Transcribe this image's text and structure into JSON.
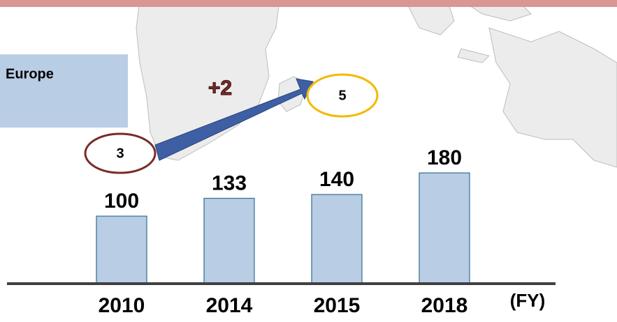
{
  "chart_data": {
    "type": "bar",
    "categories": [
      "2010",
      "2014",
      "2015",
      "2018"
    ],
    "values": [
      100,
      133,
      140,
      180
    ],
    "color": "#b9cde5",
    "ylim": [
      -25,
      500
    ],
    "x_unit": "(FY)",
    "region": "Europe",
    "change": {
      "label": "+2",
      "from": 3,
      "to": 5
    }
  }
}
